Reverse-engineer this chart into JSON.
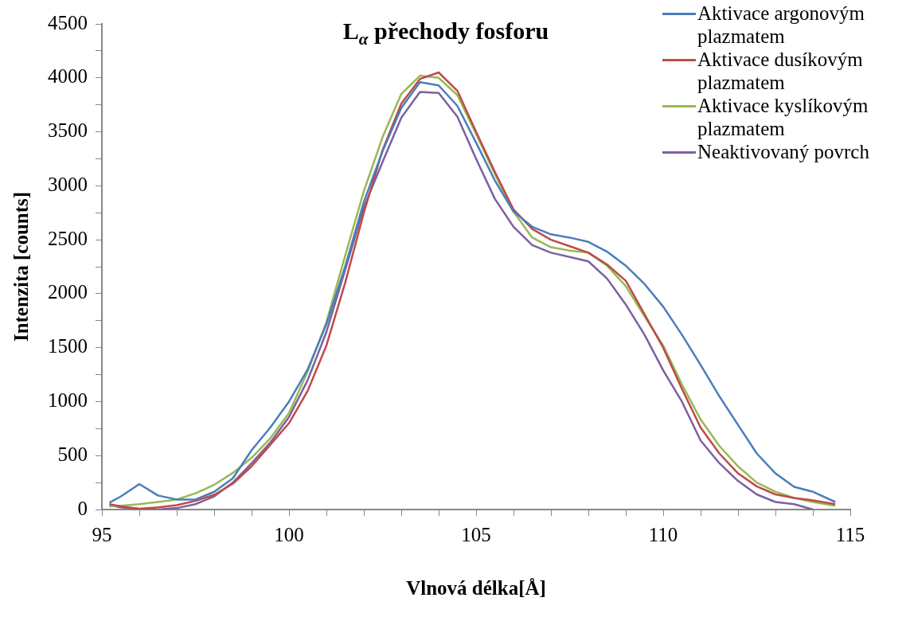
{
  "chart_data": {
    "type": "line",
    "title": "L$_{α}$ přechody fosforu",
    "xlabel": "Vlnová délka[Å]",
    "ylabel": "Intenzita [counts]",
    "x": [
      95.2,
      95.5,
      96,
      96.5,
      97,
      97.5,
      98,
      98.5,
      99,
      99.5,
      100,
      100.5,
      101,
      101.5,
      102,
      102.5,
      103,
      103.5,
      104,
      104.5,
      105,
      105.5,
      106,
      106.5,
      107,
      107.5,
      108,
      108.5,
      109,
      109.5,
      110,
      110.5,
      111,
      111.5,
      112,
      112.5,
      113,
      113.5,
      114,
      114.6
    ],
    "series": [
      {
        "name": "Aktivace argonovým plazmatem",
        "color": "#4a7ebb",
        "values": [
          64,
          120,
          236,
          130,
          93,
          93,
          164,
          290,
          550,
          760,
          1000,
          1300,
          1716,
          2250,
          2850,
          3320,
          3720,
          3960,
          3930,
          3740,
          3400,
          3050,
          2760,
          2620,
          2550,
          2520,
          2480,
          2390,
          2260,
          2090,
          1880,
          1620,
          1340,
          1050,
          785,
          520,
          335,
          210,
          165,
          70
        ]
      },
      {
        "name": "Aktivace dusíkovým plazmatem",
        "color": "#be4b48",
        "values": [
          50,
          30,
          7,
          20,
          40,
          80,
          136,
          240,
          400,
          600,
          800,
          1100,
          1520,
          2100,
          2750,
          3330,
          3760,
          3990,
          4050,
          3880,
          3500,
          3130,
          2780,
          2600,
          2500,
          2440,
          2380,
          2270,
          2120,
          1810,
          1500,
          1120,
          760,
          520,
          335,
          215,
          140,
          107,
          85,
          50
        ]
      },
      {
        "name": "Aktivace kyslíkovým plazmatem",
        "color": "#98b954",
        "values": [
          29,
          35,
          50,
          70,
          93,
          150,
          229,
          340,
          479,
          660,
          894,
          1280,
          1738,
          2350,
          2950,
          3450,
          3850,
          4020,
          4000,
          3840,
          3480,
          3110,
          2760,
          2520,
          2430,
          2400,
          2380,
          2260,
          2070,
          1790,
          1520,
          1160,
          835,
          590,
          400,
          250,
          165,
          108,
          70,
          35
        ]
      },
      {
        "name": "Neaktivovaný povrch",
        "color": "#7d60a0",
        "values": [
          40,
          20,
          5,
          0,
          14,
          50,
          121,
          250,
          429,
          620,
          858,
          1200,
          1645,
          2220,
          2800,
          3220,
          3630,
          3870,
          3860,
          3640,
          3250,
          2880,
          2620,
          2450,
          2380,
          2340,
          2300,
          2140,
          1900,
          1620,
          1290,
          1000,
          640,
          430,
          265,
          140,
          70,
          50,
          0,
          null
        ]
      }
    ],
    "xlim": [
      95,
      115
    ],
    "xticks": [
      95,
      {
        "value": 96,
        "label": null
      },
      {
        "value": 97,
        "label": null
      },
      {
        "value": 98,
        "label": null
      },
      {
        "value": 99,
        "label": null
      },
      100,
      {
        "value": 101,
        "label": null
      },
      {
        "value": 102,
        "label": null
      },
      {
        "value": 103,
        "label": null
      },
      {
        "value": 104,
        "label": null
      },
      105,
      {
        "value": 106,
        "label": null
      },
      {
        "value": 107,
        "label": null
      },
      {
        "value": 108,
        "label": null
      },
      {
        "value": 109,
        "label": null
      },
      110,
      {
        "value": 111,
        "label": null
      },
      {
        "value": 112,
        "label": null
      },
      {
        "value": 113,
        "label": null
      },
      {
        "value": 114,
        "label": null
      },
      115
    ],
    "ylim": [
      0,
      4500
    ],
    "yticks": [
      0,
      {
        "value": 250,
        "label": null
      },
      500,
      {
        "value": 750,
        "label": null
      },
      1000,
      {
        "value": 1250,
        "label": null
      },
      1500,
      {
        "value": 1750,
        "label": null
      },
      2000,
      {
        "value": 2250,
        "label": null
      },
      2500,
      {
        "value": 2750,
        "label": null
      },
      3000,
      {
        "value": 3250,
        "label": null
      },
      3500,
      {
        "value": 3750,
        "label": null
      },
      4000,
      {
        "value": 4250,
        "label": null
      },
      4500
    ],
    "legend": "top right",
    "marker": "none"
  }
}
